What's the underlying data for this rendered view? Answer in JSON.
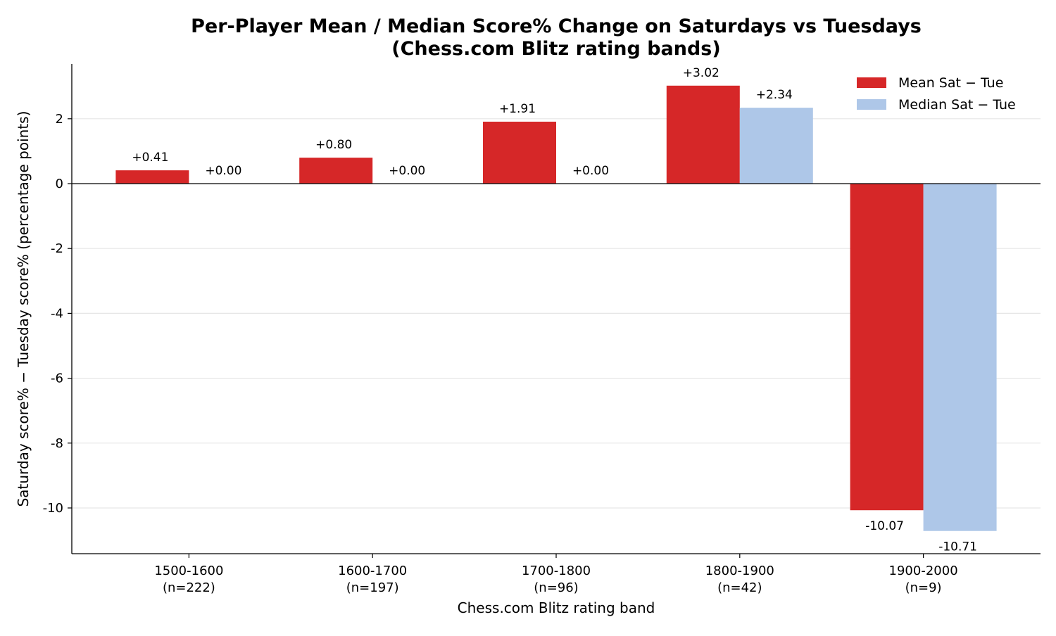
{
  "chart_data": {
    "type": "bar",
    "title": "Per-Player Mean / Median Score% Change on Saturdays vs Tuesdays",
    "subtitle": "(Chess.com Blitz rating bands)",
    "xlabel": "Chess.com Blitz rating band",
    "ylabel": "Saturday score% − Tuesday score% (percentage points)",
    "categories": [
      "1500-1600",
      "1600-1700",
      "1700-1800",
      "1800-1900",
      "1900-2000"
    ],
    "category_counts": [
      "(n=222)",
      "(n=197)",
      "(n=96)",
      "(n=42)",
      "(n=9)"
    ],
    "series": [
      {
        "name": "Mean Sat − Tue",
        "color": "#d62728",
        "values": [
          0.41,
          0.8,
          1.91,
          3.02,
          -10.07
        ],
        "labels": [
          "+0.41",
          "+0.80",
          "+1.91",
          "+3.02",
          "-10.07"
        ]
      },
      {
        "name": "Median Sat − Tue",
        "color": "#aec7e8",
        "values": [
          0.0,
          0.0,
          0.0,
          2.34,
          -10.71
        ],
        "labels": [
          "+0.00",
          "+0.00",
          "+0.00",
          "+2.34",
          "-10.71"
        ]
      }
    ],
    "yticks": [
      2,
      0,
      -2,
      -4,
      -6,
      -8,
      -10
    ],
    "ytick_labels": [
      "2",
      "0",
      "-2",
      "-4",
      "-6",
      "-8",
      "-10"
    ],
    "ylim": [
      -11.4,
      3.7
    ],
    "grid": "horizontal",
    "zero_line": true,
    "legend_position": "top-right"
  }
}
